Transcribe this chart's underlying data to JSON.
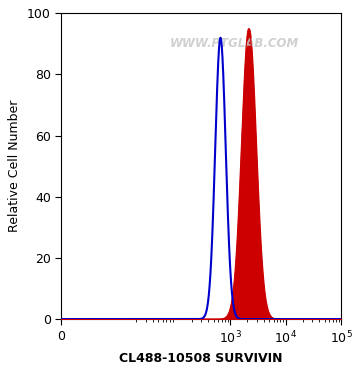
{
  "title": "",
  "xlabel": "CL488-10508 SURVIVIN",
  "ylabel": "Relative Cell Number",
  "watermark": "WWW.PTGLAB.COM",
  "xlim": [
    0,
    100000
  ],
  "ylim": [
    0,
    100
  ],
  "yticks": [
    0,
    20,
    40,
    60,
    80,
    100
  ],
  "blue_peak_log": 2.82,
  "blue_peak_y": 92,
  "blue_sigma": 0.095,
  "red_peak_log": 3.33,
  "red_peak_y": 95,
  "red_sigma": 0.13,
  "blue_color": "#0000cc",
  "red_color": "#cc0000",
  "bg_color": "#ffffff",
  "linthresh": 1,
  "linscale": 0.05,
  "figsize": [
    3.61,
    3.73
  ],
  "dpi": 100
}
